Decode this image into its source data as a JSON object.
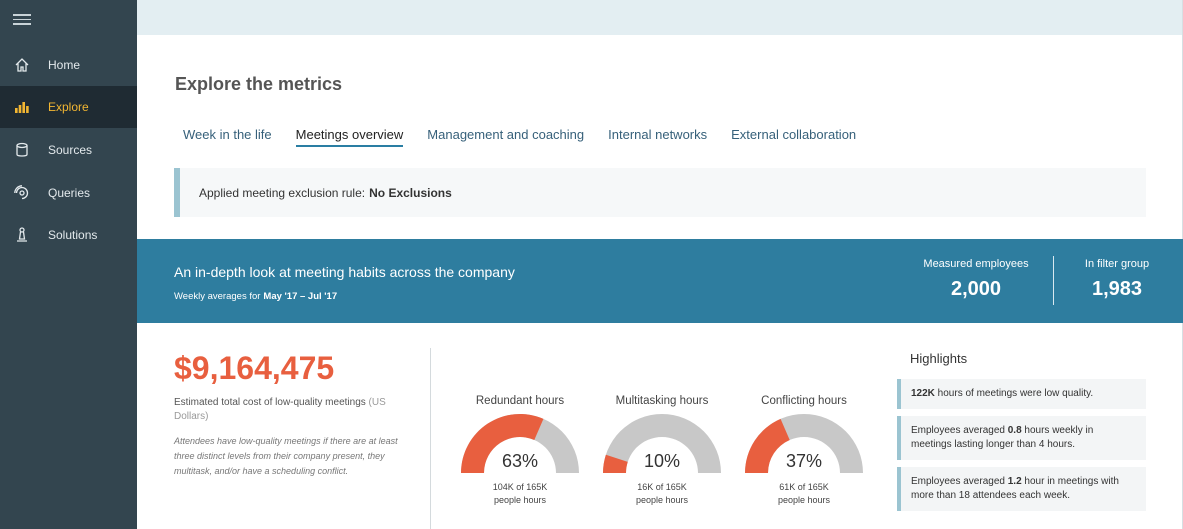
{
  "sidebar": {
    "items": [
      {
        "label": "Home",
        "icon": "home-icon",
        "active": false
      },
      {
        "label": "Explore",
        "icon": "bar-chart-icon",
        "active": true
      },
      {
        "label": "Sources",
        "icon": "database-icon",
        "active": false
      },
      {
        "label": "Queries",
        "icon": "radar-icon",
        "active": false
      },
      {
        "label": "Solutions",
        "icon": "beacon-icon",
        "active": false
      }
    ]
  },
  "page": {
    "title": "Explore the metrics"
  },
  "tabs": [
    {
      "label": "Week in the life",
      "active": false
    },
    {
      "label": "Meetings overview",
      "active": true
    },
    {
      "label": "Management and coaching",
      "active": false
    },
    {
      "label": "Internal networks",
      "active": false
    },
    {
      "label": "External collaboration",
      "active": false
    }
  ],
  "exclusion": {
    "label": "Applied meeting exclusion rule:",
    "value": "No Exclusions"
  },
  "banner": {
    "title": "An in-depth look at meeting habits across the company",
    "subtitle_prefix": "Weekly averages for",
    "date_range": "May '17 – Jul '17",
    "stats": [
      {
        "label": "Measured employees",
        "value": "2,000"
      },
      {
        "label": "In filter group",
        "value": "1,983"
      }
    ]
  },
  "cost": {
    "value": "$9,164,475",
    "label": "Estimated total cost of low-quality meetings",
    "unit": "(US Dollars)",
    "note": "Attendees have low-quality meetings if there are at least three distinct levels from their company present, they multitask, and/or have a scheduling conflict."
  },
  "gauges": [
    {
      "title": "Redundant hours",
      "percent_label": "63%",
      "fraction": 0.63,
      "detail_line1": "104K of 165K",
      "detail_line2": "people hours"
    },
    {
      "title": "Multitasking hours",
      "percent_label": "10%",
      "fraction": 0.1,
      "detail_line1": "16K of 165K",
      "detail_line2": "people hours"
    },
    {
      "title": "Conflicting hours",
      "percent_label": "37%",
      "fraction": 0.37,
      "detail_line1": "61K of 165K",
      "detail_line2": "people hours"
    }
  ],
  "highlights": {
    "title": "Highlights",
    "items": [
      {
        "bold": "122K",
        "text": " hours of meetings were low quality."
      },
      {
        "pre": "Employees averaged ",
        "bold": "0.8",
        "text": " hours weekly in meetings lasting longer than 4 hours."
      },
      {
        "pre": "Employees averaged ",
        "bold": "1.2",
        "text": " hour in meetings with more than 18 attendees each week."
      }
    ]
  },
  "colors": {
    "sidebar": "#33454f",
    "sidebar_active": "#1f2b33",
    "active_accent": "#f2b632",
    "banner": "#2e7d9f",
    "cost": "#e85f3f",
    "gauge_fill": "#e85f3f",
    "gauge_track": "#c8c8c8"
  }
}
